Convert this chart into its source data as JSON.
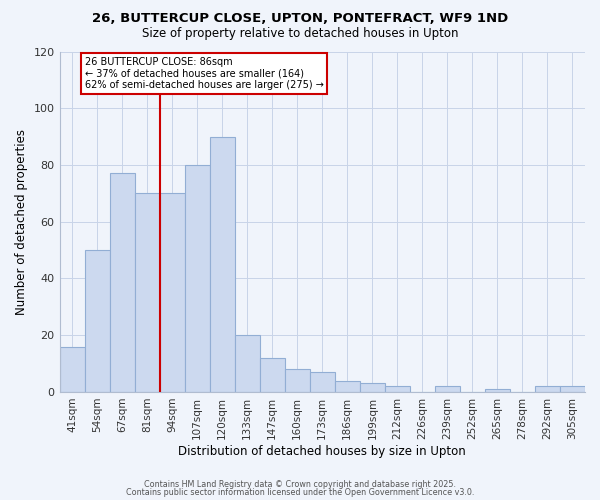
{
  "title": "26, BUTTERCUP CLOSE, UPTON, PONTEFRACT, WF9 1ND",
  "subtitle": "Size of property relative to detached houses in Upton",
  "xlabel": "Distribution of detached houses by size in Upton",
  "ylabel": "Number of detached properties",
  "categories": [
    "41sqm",
    "54sqm",
    "67sqm",
    "81sqm",
    "94sqm",
    "107sqm",
    "120sqm",
    "133sqm",
    "147sqm",
    "160sqm",
    "173sqm",
    "186sqm",
    "199sqm",
    "212sqm",
    "226sqm",
    "239sqm",
    "252sqm",
    "265sqm",
    "278sqm",
    "292sqm",
    "305sqm"
  ],
  "values": [
    16,
    50,
    77,
    70,
    70,
    80,
    90,
    20,
    12,
    8,
    7,
    4,
    3,
    2,
    0,
    2,
    0,
    1,
    0,
    2,
    2
  ],
  "bar_color": "#ccd9ef",
  "bar_edge_color": "#92aed4",
  "ylim": [
    0,
    120
  ],
  "yticks": [
    0,
    20,
    40,
    60,
    80,
    100,
    120
  ],
  "vline_x_index": 3.5,
  "annotation_title": "26 BUTTERCUP CLOSE: 86sqm",
  "annotation_line1": "← 37% of detached houses are smaller (164)",
  "annotation_line2": "62% of semi-detached houses are larger (275) →",
  "vline_color": "#cc0000",
  "footer1": "Contains HM Land Registry data © Crown copyright and database right 2025.",
  "footer2": "Contains public sector information licensed under the Open Government Licence v3.0.",
  "background_color": "#f0f4fb",
  "grid_color": "#c8d4e8"
}
